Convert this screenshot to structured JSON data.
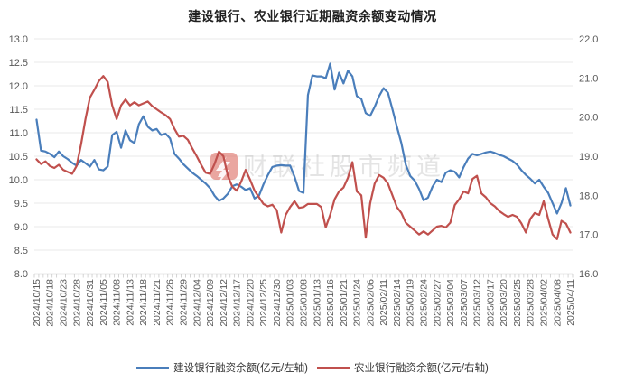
{
  "chart": {
    "title": "建设银行、农业银行近期融资余额变动情况",
    "watermark": {
      "text": "财联社股市频道",
      "logo": "cailian-lightning-logo",
      "logo_color": "#d85c52"
    },
    "colors": {
      "left_series": "#4a7ebb",
      "right_series": "#c0504d",
      "grid": "#e8e8e8",
      "tick": "#c9c9c9",
      "axis_text": "#595959",
      "title_text": "#1f1f1f"
    },
    "legend": {
      "items": [
        {
          "label": "建设银行融资余额(亿元/左轴)",
          "color": "#4a7ebb"
        },
        {
          "label": "农业银行融资余额(亿元/右轴)",
          "color": "#c0504d"
        }
      ]
    },
    "chart_data": {
      "type": "line",
      "title": "建设银行、农业银行近期融资余额变动情况",
      "grid": true,
      "legend_position": "bottom",
      "x_tick_labels": [
        "2024/10/15",
        "2024/10/18",
        "2024/10/23",
        "2024/10/28",
        "2024/10/31",
        "2024/11/05",
        "2024/11/08",
        "2024/11/13",
        "2024/11/18",
        "2024/11/21",
        "2024/11/26",
        "2024/11/29",
        "2024/12/04",
        "2024/12/09",
        "2024/12/12",
        "2024/12/17",
        "2024/12/20",
        "2024/12/25",
        "2024/12/30",
        "2025/01/03",
        "2025/01/08",
        "2025/01/13",
        "2025/01/16",
        "2025/01/21",
        "2025/01/24",
        "2025/02/06",
        "2025/02/11",
        "2025/02/14",
        "2025/02/19",
        "2025/02/24",
        "2025/02/27",
        "2025/03/04",
        "2025/03/07",
        "2025/03/12",
        "2025/03/17",
        "2025/03/20",
        "2025/03/25",
        "2025/03/28",
        "2025/04/02",
        "2025/04/08",
        "2025/04/11"
      ],
      "x_label_every": 3,
      "left_axis": {
        "min": 8.0,
        "max": 13.0,
        "step": 0.5,
        "ticks": [
          "13.0",
          "12.5",
          "12.0",
          "11.5",
          "11.0",
          "10.5",
          "10.0",
          "9.5",
          "9.0",
          "8.5",
          "8.0"
        ]
      },
      "right_axis": {
        "min": 16.0,
        "max": 22.0,
        "step": 1.0,
        "ticks": [
          "22.0",
          "21.0",
          "20.0",
          "19.0",
          "18.0",
          "17.0",
          "16.0"
        ]
      },
      "series": [
        {
          "name": "建设银行融资余额(亿元/左轴)",
          "axis": "left",
          "color": "#4a7ebb",
          "values": [
            11.28,
            10.62,
            10.6,
            10.55,
            10.48,
            10.6,
            10.5,
            10.44,
            10.36,
            10.3,
            10.42,
            10.35,
            10.28,
            10.42,
            10.22,
            10.2,
            10.28,
            10.95,
            11.02,
            10.68,
            11.05,
            10.84,
            10.78,
            11.18,
            11.35,
            11.13,
            11.05,
            11.08,
            10.95,
            10.98,
            10.88,
            10.55,
            10.45,
            10.33,
            10.24,
            10.15,
            10.08,
            10.0,
            9.92,
            9.82,
            9.66,
            9.55,
            9.6,
            9.7,
            9.86,
            9.9,
            9.85,
            9.78,
            9.82,
            9.6,
            9.66,
            9.9,
            10.1,
            10.27,
            10.3,
            10.31,
            10.3,
            10.3,
            10.06,
            9.76,
            9.72,
            11.8,
            12.22,
            12.2,
            12.2,
            12.16,
            12.47,
            11.92,
            12.28,
            12.05,
            12.32,
            12.2,
            11.78,
            11.72,
            11.42,
            11.36,
            11.55,
            11.78,
            11.95,
            11.85,
            11.5,
            11.13,
            10.78,
            10.32,
            10.08,
            9.98,
            9.8,
            9.56,
            9.62,
            9.85,
            10.0,
            9.95,
            10.15,
            10.2,
            10.17,
            10.05,
            10.27,
            10.45,
            10.55,
            10.52,
            10.55,
            10.58,
            10.6,
            10.57,
            10.53,
            10.5,
            10.45,
            10.4,
            10.32,
            10.2,
            10.1,
            10.02,
            9.92,
            10.0,
            9.85,
            9.72,
            9.5,
            9.28,
            9.5,
            9.82,
            9.45
          ]
        },
        {
          "name": "农业银行融资余额(亿元/右轴)",
          "axis": "right",
          "color": "#c0504d",
          "values": [
            18.92,
            18.8,
            18.87,
            18.75,
            18.7,
            18.78,
            18.65,
            18.6,
            18.55,
            18.75,
            19.3,
            19.95,
            20.5,
            20.7,
            20.92,
            21.05,
            20.9,
            20.3,
            19.95,
            20.3,
            20.45,
            20.3,
            20.38,
            20.3,
            20.35,
            20.4,
            20.28,
            20.2,
            20.12,
            20.05,
            19.95,
            19.7,
            19.5,
            19.52,
            19.42,
            19.2,
            19.0,
            18.78,
            18.58,
            18.55,
            18.8,
            19.12,
            19.0,
            18.5,
            18.22,
            18.12,
            18.35,
            18.65,
            18.4,
            18.12,
            17.95,
            17.78,
            17.72,
            17.76,
            17.62,
            17.05,
            17.5,
            17.7,
            17.85,
            17.68,
            17.7,
            17.78,
            17.78,
            17.78,
            17.7,
            17.18,
            17.5,
            17.9,
            18.1,
            18.2,
            18.45,
            18.85,
            18.1,
            18.0,
            16.92,
            17.8,
            18.3,
            18.52,
            18.45,
            18.3,
            18.0,
            17.7,
            17.55,
            17.3,
            17.2,
            17.1,
            17.0,
            17.08,
            17.0,
            17.1,
            17.2,
            17.22,
            17.18,
            17.3,
            17.75,
            17.9,
            18.1,
            18.05,
            18.42,
            18.5,
            18.05,
            17.95,
            17.8,
            17.72,
            17.6,
            17.52,
            17.45,
            17.5,
            17.45,
            17.28,
            17.05,
            17.4,
            17.55,
            17.5,
            17.85,
            17.4,
            17.0,
            16.88,
            17.35,
            17.28,
            17.05
          ]
        }
      ]
    }
  }
}
